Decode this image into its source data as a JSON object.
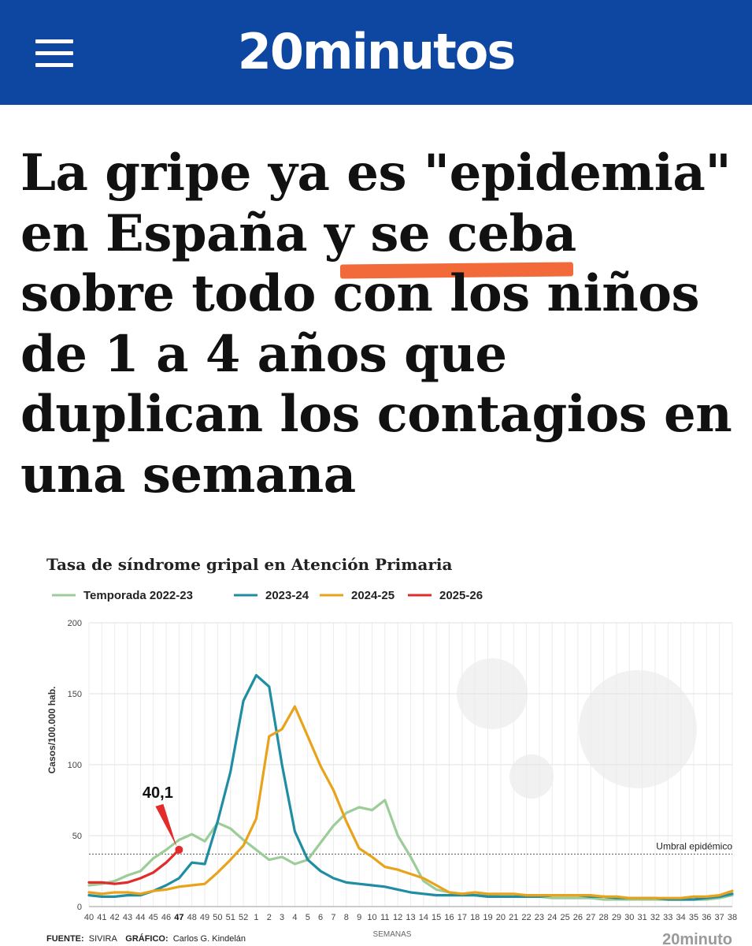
{
  "header": {
    "logo": "20minutos",
    "menu_icon": "hamburger-menu-icon",
    "background": "#0d47a1"
  },
  "headline": "La gripe ya es \"epidemia\" en España y se ceba sobre todo con los niños de 1 a 4 años que duplican los contagios en una semana",
  "headline_lines": [
    "La gripe ya es \"epidemia\"",
    "en España y se ceba",
    "sobre todo con los niños",
    "de 1 a 4 años que",
    "duplican los contagios en",
    "una semana"
  ],
  "highlight_color": "#f26a3a",
  "chart_data": {
    "type": "line",
    "title": "Tasa de síndrome gripal en Atención Primaria",
    "ylabel": "Casos/100.000 hab.",
    "xlabel": "SEMANAS",
    "ylim": [
      0,
      200
    ],
    "yticks": [
      "0",
      "50",
      "100",
      "150",
      "200"
    ],
    "categories": [
      "40",
      "41",
      "42",
      "43",
      "44",
      "45",
      "46",
      "47",
      "48",
      "49",
      "50",
      "51",
      "52",
      "1",
      "2",
      "3",
      "4",
      "5",
      "6",
      "7",
      "8",
      "9",
      "10",
      "11",
      "12",
      "13",
      "14",
      "15",
      "16",
      "17",
      "18",
      "19",
      "20",
      "21",
      "22",
      "23",
      "24",
      "25",
      "26",
      "27",
      "28",
      "29",
      "30",
      "31",
      "32",
      "33",
      "34",
      "35",
      "36",
      "37",
      "38"
    ],
    "highlight_category": "47",
    "threshold": {
      "value": 37,
      "label": "Umbral epidémico"
    },
    "annotation": {
      "text": "40,1",
      "series": "2025-26",
      "category": "47",
      "value": 40.1
    },
    "grid": true,
    "legend_position": "top",
    "series": [
      {
        "name": "Temporada 2022-23",
        "color": "#9ccc98",
        "values": [
          15,
          16,
          18,
          22,
          25,
          34,
          40,
          47,
          51,
          46,
          59,
          55,
          47,
          40,
          33,
          35,
          30,
          33,
          45,
          57,
          66,
          70,
          68,
          75,
          50,
          35,
          18,
          12,
          10,
          9,
          8,
          8,
          7,
          7,
          7,
          7,
          6,
          6,
          6,
          6,
          5,
          5,
          5,
          5,
          5,
          5,
          5,
          5,
          5,
          6,
          8
        ]
      },
      {
        "name": "2023-24",
        "color": "#1f8ea3",
        "values": [
          8,
          7,
          7,
          8,
          8,
          11,
          15,
          20,
          31,
          30,
          60,
          95,
          145,
          163,
          155,
          100,
          53,
          33,
          25,
          20,
          17,
          16,
          15,
          14,
          12,
          10,
          9,
          8,
          8,
          8,
          8,
          7,
          7,
          7,
          7,
          7,
          8,
          8,
          8,
          7,
          7,
          6,
          6,
          6,
          6,
          5,
          5,
          5,
          6,
          7,
          9
        ]
      },
      {
        "name": "2024-25",
        "color": "#e8a31b",
        "values": [
          10,
          9,
          10,
          10,
          9,
          11,
          12,
          14,
          15,
          16,
          24,
          33,
          43,
          62,
          120,
          125,
          141,
          120,
          99,
          82,
          60,
          41,
          35,
          28,
          26,
          23,
          20,
          15,
          10,
          9,
          10,
          9,
          9,
          9,
          8,
          8,
          8,
          8,
          8,
          8,
          7,
          7,
          6,
          6,
          6,
          6,
          6,
          7,
          7,
          8,
          11
        ]
      },
      {
        "name": "2025-26",
        "color": "#e22b2b",
        "values": [
          17,
          17,
          16,
          17,
          20,
          24,
          31,
          40.1,
          null,
          null,
          null,
          null,
          null,
          null,
          null,
          null,
          null,
          null,
          null,
          null,
          null,
          null,
          null,
          null,
          null,
          null,
          null,
          null,
          null,
          null,
          null,
          null,
          null,
          null,
          null,
          null,
          null,
          null,
          null,
          null,
          null,
          null,
          null,
          null,
          null,
          null,
          null,
          null,
          null,
          null,
          null
        ]
      }
    ],
    "footer": {
      "source_label": "FUENTE:",
      "source": "SIVIRA",
      "graphic_label": "GRÁFICO:",
      "graphic": "Carlos G. Kindelán"
    },
    "watermark": "20minuto"
  }
}
